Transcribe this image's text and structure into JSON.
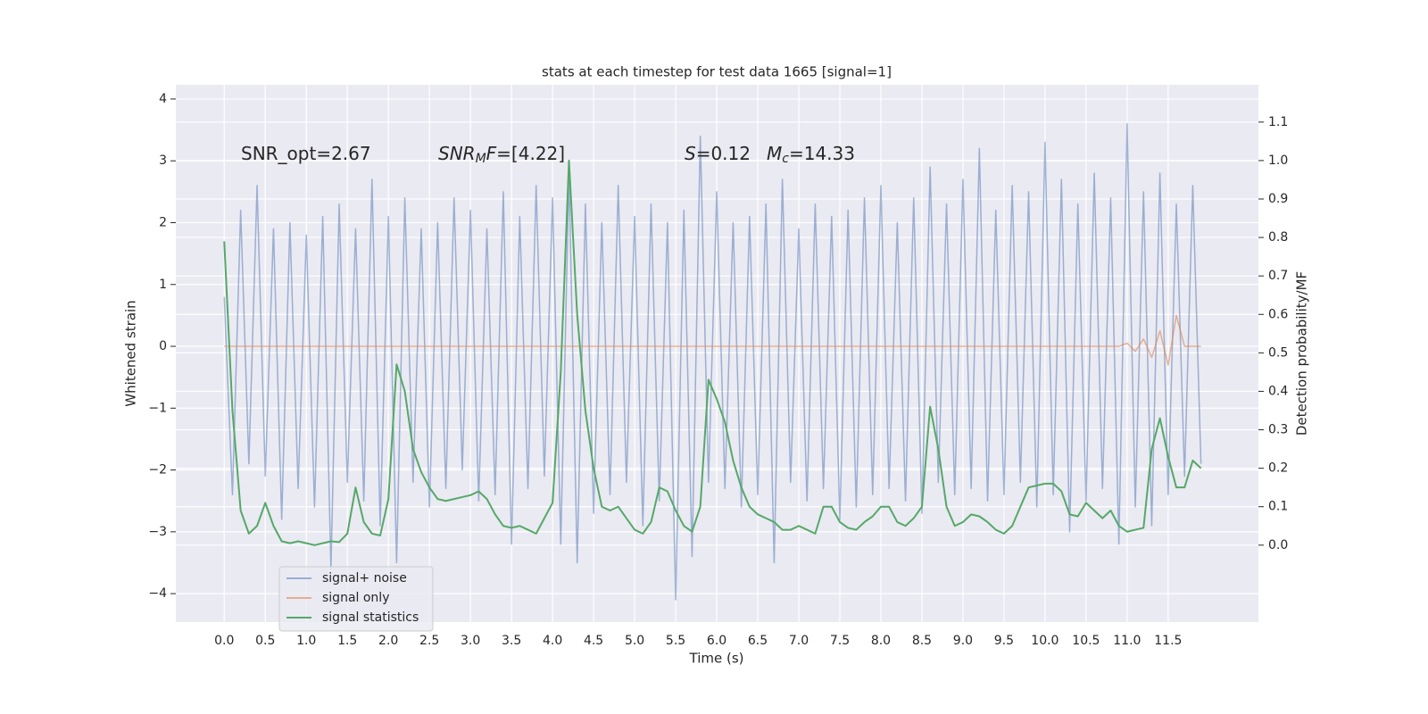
{
  "chart_data": {
    "type": "line",
    "title": "stats at each timestep for test data 1665 [signal=1]",
    "x_label": "Time (s)",
    "y_label": "Whitened strain",
    "y2_label": "Detection probability/MF",
    "annotations": [
      {
        "parts": [
          {
            "text": "SNR_opt=2.67",
            "style": "normal"
          }
        ]
      },
      {
        "parts": [
          {
            "text": "SNR",
            "style": "italic"
          },
          {
            "text": "M",
            "style": "sub"
          },
          {
            "text": "F",
            "style": "italic"
          },
          {
            "text": "=[4.22]",
            "style": "normal"
          }
        ]
      },
      {
        "parts": [
          {
            "text": "S",
            "style": "italic"
          },
          {
            "text": "=0.12",
            "style": "normal"
          }
        ]
      },
      {
        "parts": [
          {
            "text": "M",
            "style": "italic"
          },
          {
            "text": "c",
            "style": "sub"
          },
          {
            "text": "=14.33",
            "style": "normal"
          }
        ]
      }
    ],
    "x": [
      0,
      0.1,
      0.2,
      0.3,
      0.4,
      0.5,
      0.6,
      0.7,
      0.8,
      0.9,
      1,
      1.1,
      1.2,
      1.3,
      1.4,
      1.5,
      1.6,
      1.7,
      1.8,
      1.9,
      2,
      2.1,
      2.2,
      2.3,
      2.4,
      2.5,
      2.6,
      2.7,
      2.8,
      2.9,
      3,
      3.1,
      3.2,
      3.3,
      3.4,
      3.5,
      3.6,
      3.7,
      3.8,
      3.9,
      4,
      4.1,
      4.2,
      4.3,
      4.4,
      4.5,
      4.6,
      4.7,
      4.8,
      4.9,
      5,
      5.1,
      5.2,
      5.3,
      5.4,
      5.5,
      5.6,
      5.7,
      5.8,
      5.9,
      6,
      6.1,
      6.2,
      6.3,
      6.4,
      6.5,
      6.6,
      6.7,
      6.8,
      6.9,
      7,
      7.1,
      7.2,
      7.3,
      7.4,
      7.5,
      7.6,
      7.7,
      7.8,
      7.9,
      8,
      8.1,
      8.2,
      8.3,
      8.4,
      8.5,
      8.6,
      8.7,
      8.8,
      8.9,
      9,
      9.1,
      9.2,
      9.3,
      9.4,
      9.5,
      9.6,
      9.7,
      9.8,
      9.9,
      10,
      10.1,
      10.2,
      10.3,
      10.4,
      10.5,
      10.6,
      10.7,
      10.8,
      10.9,
      11,
      11.1,
      11.2,
      11.3,
      11.4,
      11.5,
      11.6,
      11.7,
      11.8,
      11.9
    ],
    "series": [
      {
        "name": "signal+ noise",
        "color": "#4c72b0",
        "opacity": 0.5,
        "axis": "y",
        "values": [
          0.8,
          -2.4,
          2.2,
          -1.9,
          2.6,
          -2.1,
          1.9,
          -2.8,
          2.0,
          -2.3,
          1.8,
          -2.6,
          2.1,
          -3.6,
          2.3,
          -2.2,
          1.9,
          -2.5,
          2.7,
          -2.9,
          2.1,
          -3.5,
          2.4,
          -2.2,
          1.9,
          -2.6,
          2.0,
          -2.3,
          2.4,
          -2.0,
          2.2,
          -2.5,
          1.9,
          -2.4,
          2.5,
          -3.2,
          2.1,
          -2.3,
          2.6,
          -2.1,
          2.4,
          -3.2,
          2.8,
          -3.5,
          2.3,
          -2.7,
          2.0,
          -2.4,
          2.6,
          -2.2,
          2.1,
          -2.9,
          2.3,
          -2.5,
          2.0,
          -4.1,
          2.2,
          -3.4,
          3.4,
          -2.2,
          2.5,
          -2.3,
          2.0,
          -2.6,
          2.1,
          -2.4,
          2.3,
          -3.5,
          2.7,
          -2.2,
          1.9,
          -2.5,
          2.3,
          -2.3,
          2.1,
          -2.8,
          2.2,
          -2.6,
          2.4,
          -2.4,
          2.6,
          -2.3,
          2.0,
          -2.5,
          2.4,
          -2.7,
          2.9,
          -2.2,
          2.3,
          -2.4,
          2.7,
          -2.3,
          3.2,
          -2.5,
          2.2,
          -2.4,
          2.6,
          -2.2,
          2.5,
          -2.6,
          3.3,
          -2.4,
          2.7,
          -3.0,
          2.3,
          -2.5,
          2.8,
          -2.3,
          2.4,
          -3.2,
          3.6,
          -2.6,
          2.5,
          -2.9,
          2.8,
          -2.4,
          2.3,
          -2.1,
          2.6,
          -1.9
        ]
      },
      {
        "name": "signal only",
        "color": "#dd8452",
        "opacity": 0.6,
        "axis": "y",
        "values": [
          0,
          0,
          0,
          0,
          0,
          0,
          0,
          0,
          0,
          0,
          0,
          0,
          0,
          0,
          0,
          0,
          0,
          0,
          0,
          0,
          0,
          0,
          0,
          0,
          0,
          0,
          0,
          0,
          0,
          0,
          0,
          0,
          0,
          0,
          0,
          0,
          0,
          0,
          0,
          0,
          0,
          0,
          0,
          0,
          0,
          0,
          0,
          0,
          0,
          0,
          0,
          0,
          0,
          0,
          0,
          0,
          0,
          0,
          0,
          0,
          0,
          0,
          0,
          0,
          0,
          0,
          0,
          0,
          0,
          0,
          0,
          0,
          0,
          0,
          0,
          0,
          0,
          0,
          0,
          0,
          0,
          0,
          0,
          0,
          0,
          0,
          0,
          0,
          0,
          0,
          0,
          0,
          0,
          0,
          0,
          0,
          0,
          0,
          0,
          0,
          0,
          0,
          0,
          0,
          0,
          0,
          0,
          0,
          0,
          0,
          0.05,
          -0.08,
          0.12,
          -0.18,
          0.25,
          -0.3,
          0.5,
          0,
          0,
          0
        ]
      },
      {
        "name": "signal statistics",
        "color": "#55a868",
        "opacity": 1,
        "axis": "y2",
        "values": [
          0.79,
          0.35,
          0.09,
          0.03,
          0.05,
          0.11,
          0.05,
          0.01,
          0.005,
          0.01,
          0.005,
          0.0,
          0.005,
          0.01,
          0.008,
          0.03,
          0.15,
          0.06,
          0.03,
          0.025,
          0.12,
          0.47,
          0.4,
          0.25,
          0.19,
          0.15,
          0.12,
          0.115,
          0.12,
          0.125,
          0.13,
          0.14,
          0.12,
          0.08,
          0.05,
          0.045,
          0.05,
          0.04,
          0.03,
          0.07,
          0.11,
          0.45,
          1.0,
          0.6,
          0.35,
          0.2,
          0.1,
          0.09,
          0.1,
          0.07,
          0.04,
          0.03,
          0.06,
          0.15,
          0.14,
          0.09,
          0.05,
          0.035,
          0.1,
          0.43,
          0.38,
          0.32,
          0.22,
          0.15,
          0.1,
          0.08,
          0.07,
          0.06,
          0.04,
          0.04,
          0.05,
          0.04,
          0.03,
          0.1,
          0.1,
          0.06,
          0.045,
          0.04,
          0.06,
          0.075,
          0.1,
          0.1,
          0.06,
          0.05,
          0.07,
          0.1,
          0.36,
          0.25,
          0.1,
          0.05,
          0.06,
          0.08,
          0.075,
          0.06,
          0.04,
          0.03,
          0.05,
          0.1,
          0.15,
          0.155,
          0.16,
          0.16,
          0.14,
          0.08,
          0.075,
          0.11,
          0.09,
          0.07,
          0.09,
          0.05,
          0.035,
          0.04,
          0.045,
          0.25,
          0.33,
          0.23,
          0.15,
          0.15,
          0.22,
          0.2
        ]
      }
    ],
    "xlim": [
      -0.59,
      12.6
    ],
    "ylim": [
      -4.46,
      4.23
    ],
    "y2lim": [
      -0.2,
      1.197
    ],
    "xticks": [
      {
        "value": 0,
        "label": "0.0"
      },
      {
        "value": 0.5,
        "label": "0.5"
      },
      {
        "value": 1,
        "label": "1.0"
      },
      {
        "value": 1.5,
        "label": "1.5"
      },
      {
        "value": 2,
        "label": "2.0"
      },
      {
        "value": 2.5,
        "label": "2.5"
      },
      {
        "value": 3,
        "label": "3.0"
      },
      {
        "value": 3.5,
        "label": "3.5"
      },
      {
        "value": 4,
        "label": "4.0"
      },
      {
        "value": 4.5,
        "label": "4.5"
      },
      {
        "value": 5,
        "label": "5.0"
      },
      {
        "value": 5.5,
        "label": "5.5"
      },
      {
        "value": 6,
        "label": "6.0"
      },
      {
        "value": 6.5,
        "label": "6.5"
      },
      {
        "value": 7,
        "label": "7.0"
      },
      {
        "value": 7.5,
        "label": "7.5"
      },
      {
        "value": 8,
        "label": "8.0"
      },
      {
        "value": 8.5,
        "label": "8.5"
      },
      {
        "value": 9,
        "label": "9.0"
      },
      {
        "value": 9.5,
        "label": "9.5"
      },
      {
        "value": 10,
        "label": "10.0"
      },
      {
        "value": 10.5,
        "label": "10.5"
      },
      {
        "value": 11,
        "label": "11.0"
      },
      {
        "value": 11.5,
        "label": "11.5"
      }
    ],
    "yticks": [
      {
        "value": -4,
        "label": "−4"
      },
      {
        "value": -3,
        "label": "−3"
      },
      {
        "value": -2,
        "label": "−2"
      },
      {
        "value": -1,
        "label": "−1"
      },
      0,
      1,
      2,
      3,
      4
    ],
    "y2ticks": [
      {
        "value": 0,
        "label": "0.0"
      },
      {
        "value": 0.1,
        "label": "0.1"
      },
      {
        "value": 0.2,
        "label": "0.2"
      },
      {
        "value": 0.3,
        "label": "0.3"
      },
      {
        "value": 0.4,
        "label": "0.4"
      },
      {
        "value": 0.5,
        "label": "0.5"
      },
      {
        "value": 0.6,
        "label": "0.6"
      },
      {
        "value": 0.7,
        "label": "0.7"
      },
      {
        "value": 0.8,
        "label": "0.8"
      },
      {
        "value": 0.9,
        "label": "0.9"
      },
      {
        "value": 1.0,
        "label": "1.0"
      },
      {
        "value": 1.1,
        "label": "1.1"
      }
    ],
    "grid": true,
    "legend": "lower left",
    "background": "#eaeaf2"
  }
}
